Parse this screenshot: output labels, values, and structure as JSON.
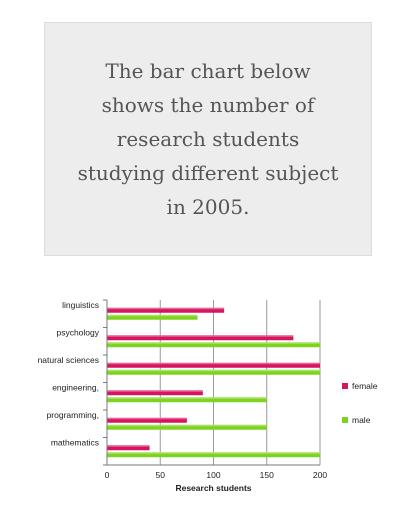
{
  "prompt": {
    "text": "The bar chart below shows the number of research students studying different subject in 2005."
  },
  "chart_data": {
    "type": "bar",
    "orientation": "horizontal",
    "title": "",
    "xlabel": "Research students",
    "ylabel": "",
    "xlim": [
      0,
      200
    ],
    "x_ticks": [
      0,
      50,
      100,
      150,
      200
    ],
    "grid": "vertical",
    "legend_position": "right",
    "categories": [
      "linguistics",
      "psychology",
      "natural sciences",
      "engineering,",
      "programming,",
      "mathematics"
    ],
    "series": [
      {
        "name": "female",
        "color": "#d6145f",
        "values": [
          110,
          175,
          200,
          90,
          75,
          40
        ]
      },
      {
        "name": "male",
        "color": "#7ed321",
        "values": [
          85,
          200,
          200,
          150,
          150,
          200
        ]
      }
    ]
  }
}
